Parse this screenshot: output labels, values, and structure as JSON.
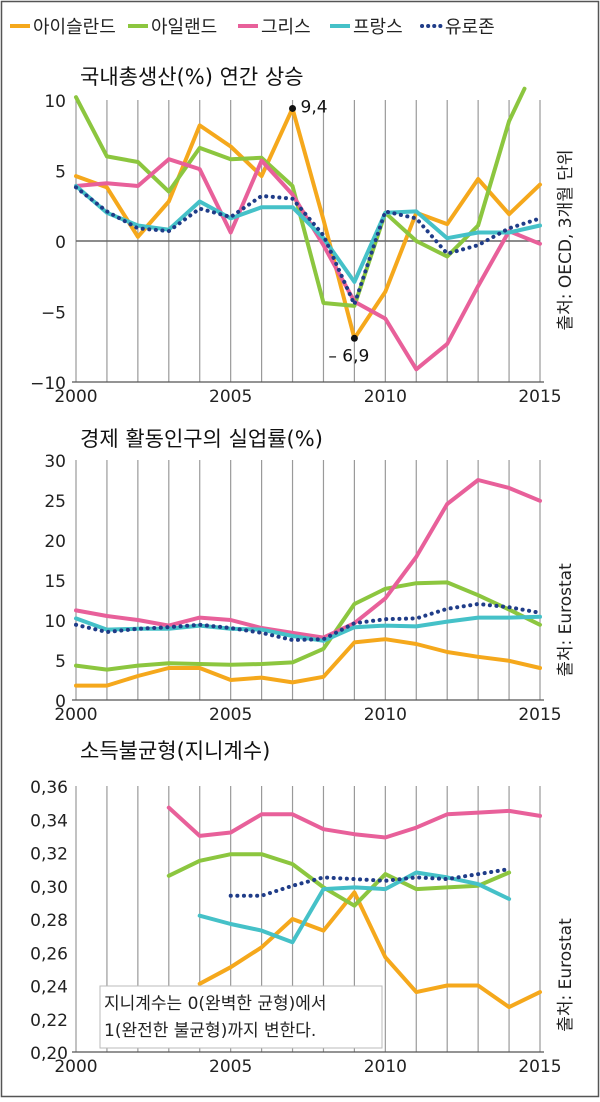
{
  "legend": [
    {
      "name": "아이슬란드",
      "color": "#f5a81c",
      "style": "solid"
    },
    {
      "name": "아일랜드",
      "color": "#8cc63f",
      "style": "solid"
    },
    {
      "name": "그리스",
      "color": "#e8609a",
      "style": "solid"
    },
    {
      "name": "프랑스",
      "color": "#45c1c8",
      "style": "solid"
    },
    {
      "name": "유로존",
      "color": "#1f3c88",
      "style": "dotted"
    }
  ],
  "chart_data": [
    {
      "type": "line",
      "title": "국내총생산(%) 연간 상승",
      "source": "출처: OECD, 3개월 단위",
      "x_ticks": [
        "2000",
        "2005",
        "2010",
        "2015"
      ],
      "xlim": [
        2000,
        2015
      ],
      "y_ticks": [
        "10",
        "5",
        "0",
        "−5",
        "−10"
      ],
      "ylim": [
        -10,
        10
      ],
      "zero_line": true,
      "annotations": [
        {
          "x": 2007,
          "y": 9.4,
          "label": "9,4"
        },
        {
          "x": 2009,
          "y": -6.9,
          "label": "– 6,9"
        }
      ],
      "series": [
        {
          "name": "아이슬란드",
          "x": [
            2000,
            2001,
            2002,
            2003,
            2004,
            2005,
            2006,
            2007,
            2008,
            2009,
            2010,
            2011,
            2012,
            2013,
            2014,
            2015
          ],
          "values": [
            4.6,
            3.8,
            0.3,
            2.8,
            8.2,
            6.7,
            4.6,
            9.4,
            1.5,
            -6.9,
            -3.6,
            2.0,
            1.2,
            4.4,
            1.9,
            4.0
          ]
        },
        {
          "name": "아일랜드",
          "x": [
            2000,
            2001,
            2002,
            2003,
            2004,
            2005,
            2006,
            2007,
            2008,
            2009,
            2010,
            2011,
            2012,
            2013,
            2014,
            2014.5
          ],
          "values": [
            10.2,
            6.0,
            5.6,
            3.5,
            6.6,
            5.8,
            5.9,
            3.9,
            -4.4,
            -4.6,
            2.0,
            0.0,
            -1.1,
            1.1,
            8.5,
            10.8
          ]
        },
        {
          "name": "그리스",
          "x": [
            2000,
            2001,
            2002,
            2003,
            2004,
            2005,
            2006,
            2007,
            2008,
            2009,
            2010,
            2011,
            2012,
            2013,
            2014,
            2015
          ],
          "values": [
            3.9,
            4.1,
            3.9,
            5.8,
            5.1,
            0.6,
            5.7,
            3.3,
            -0.3,
            -4.3,
            -5.5,
            -9.1,
            -7.3,
            -3.2,
            0.7,
            -0.2
          ]
        },
        {
          "name": "프랑스",
          "x": [
            2000,
            2001,
            2002,
            2003,
            2004,
            2005,
            2006,
            2007,
            2008,
            2009,
            2010,
            2011,
            2012,
            2013,
            2014,
            2015
          ],
          "values": [
            3.9,
            2.0,
            1.1,
            0.8,
            2.8,
            1.6,
            2.4,
            2.4,
            0.2,
            -2.9,
            2.0,
            2.1,
            0.2,
            0.6,
            0.6,
            1.1
          ]
        },
        {
          "name": "유로존",
          "x": [
            2000,
            2001,
            2002,
            2003,
            2004,
            2005,
            2006,
            2007,
            2008,
            2009,
            2010,
            2011,
            2012,
            2013,
            2014,
            2015
          ],
          "values": [
            3.8,
            2.1,
            0.9,
            0.7,
            2.3,
            1.7,
            3.2,
            3.0,
            0.4,
            -4.5,
            2.1,
            1.6,
            -0.9,
            -0.3,
            0.9,
            1.6
          ]
        }
      ]
    },
    {
      "type": "line",
      "title": "경제 활동인구의 실업률(%)",
      "source": "출처: Eurostat",
      "x_ticks": [
        "2000",
        "2005",
        "2010",
        "2015"
      ],
      "xlim": [
        2000,
        2015
      ],
      "y_ticks": [
        "30",
        "25",
        "20",
        "15",
        "10",
        "5",
        "0"
      ],
      "ylim": [
        0,
        30
      ],
      "series": [
        {
          "name": "아이슬란드",
          "x": [
            2000,
            2001,
            2002,
            2003,
            2004,
            2005,
            2006,
            2007,
            2008,
            2009,
            2010,
            2011,
            2012,
            2013,
            2014,
            2015
          ],
          "values": [
            1.8,
            1.8,
            3.0,
            4.0,
            4.0,
            2.5,
            2.8,
            2.2,
            2.9,
            7.2,
            7.6,
            7.0,
            6.0,
            5.4,
            4.9,
            4.0
          ]
        },
        {
          "name": "아일랜드",
          "x": [
            2000,
            2001,
            2002,
            2003,
            2004,
            2005,
            2006,
            2007,
            2008,
            2009,
            2010,
            2011,
            2012,
            2013,
            2014,
            2015
          ],
          "values": [
            4.3,
            3.8,
            4.3,
            4.6,
            4.5,
            4.4,
            4.5,
            4.7,
            6.4,
            12.0,
            13.9,
            14.6,
            14.7,
            13.1,
            11.3,
            9.4
          ]
        },
        {
          "name": "그리스",
          "x": [
            2000,
            2001,
            2002,
            2003,
            2004,
            2005,
            2006,
            2007,
            2008,
            2009,
            2010,
            2011,
            2012,
            2013,
            2014,
            2015
          ],
          "values": [
            11.2,
            10.5,
            10.0,
            9.3,
            10.3,
            10.0,
            9.0,
            8.4,
            7.8,
            9.6,
            12.7,
            17.9,
            24.5,
            27.5,
            26.5,
            24.9
          ]
        },
        {
          "name": "프랑스",
          "x": [
            2000,
            2001,
            2002,
            2003,
            2004,
            2005,
            2006,
            2007,
            2008,
            2009,
            2010,
            2011,
            2012,
            2013,
            2014,
            2015
          ],
          "values": [
            10.2,
            8.8,
            8.9,
            8.9,
            9.3,
            8.9,
            8.8,
            8.0,
            7.4,
            9.1,
            9.3,
            9.2,
            9.8,
            10.3,
            10.3,
            10.4
          ]
        },
        {
          "name": "유로존",
          "x": [
            2000,
            2001,
            2002,
            2003,
            2004,
            2005,
            2006,
            2007,
            2008,
            2009,
            2010,
            2011,
            2012,
            2013,
            2014,
            2015
          ],
          "values": [
            9.4,
            8.5,
            8.9,
            9.1,
            9.4,
            9.0,
            8.4,
            7.5,
            7.6,
            9.6,
            10.1,
            10.2,
            11.4,
            12.0,
            11.6,
            10.9
          ]
        }
      ]
    },
    {
      "type": "line",
      "title": "소득불균형(지니계수)",
      "source": "출처: Eurostat",
      "note": [
        "지니계수는 0(완벽한 균형)에서",
        "1(완전한 불균형)까지 변한다."
      ],
      "x_ticks": [
        "2000",
        "2005",
        "2010",
        "2015"
      ],
      "xlim": [
        2000,
        2015
      ],
      "y_ticks": [
        "0,36",
        "0,34",
        "0,32",
        "0,30",
        "0,28",
        "0,26",
        "0,24",
        "0,22",
        "0,20"
      ],
      "ylim": [
        0.2,
        0.36
      ],
      "series": [
        {
          "name": "아이슬란드",
          "x": [
            2004,
            2005,
            2006,
            2007,
            2008,
            2009,
            2010,
            2011,
            2012,
            2013,
            2014,
            2015
          ],
          "values": [
            0.241,
            0.251,
            0.263,
            0.28,
            0.273,
            0.296,
            0.257,
            0.236,
            0.24,
            0.24,
            0.227,
            0.236
          ]
        },
        {
          "name": "아일랜드",
          "x": [
            2003,
            2004,
            2005,
            2006,
            2007,
            2008,
            2009,
            2010,
            2011,
            2012,
            2013,
            2014
          ],
          "values": [
            0.306,
            0.315,
            0.319,
            0.319,
            0.313,
            0.299,
            0.288,
            0.307,
            0.298,
            0.299,
            0.3,
            0.308
          ]
        },
        {
          "name": "그리스",
          "x": [
            2003,
            2004,
            2005,
            2006,
            2007,
            2008,
            2009,
            2010,
            2011,
            2012,
            2013,
            2014,
            2015
          ],
          "values": [
            0.347,
            0.33,
            0.332,
            0.343,
            0.343,
            0.334,
            0.331,
            0.329,
            0.335,
            0.343,
            0.344,
            0.345,
            0.342
          ]
        },
        {
          "name": "프랑스",
          "x": [
            2004,
            2005,
            2006,
            2007,
            2008,
            2009,
            2010,
            2011,
            2012,
            2013,
            2014
          ],
          "values": [
            0.282,
            0.277,
            0.273,
            0.266,
            0.298,
            0.299,
            0.298,
            0.308,
            0.305,
            0.301,
            0.292
          ]
        },
        {
          "name": "유로존",
          "x": [
            2005,
            2006,
            2007,
            2008,
            2009,
            2010,
            2011,
            2012,
            2013,
            2014
          ],
          "values": [
            0.294,
            0.294,
            0.3,
            0.305,
            0.304,
            0.303,
            0.305,
            0.304,
            0.307,
            0.31
          ]
        }
      ]
    }
  ]
}
